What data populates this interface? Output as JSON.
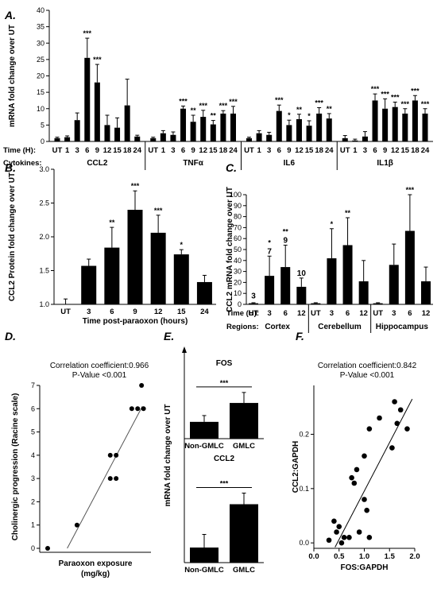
{
  "panels": [
    {
      "id": "A",
      "label": "A."
    },
    {
      "id": "B",
      "label": "B."
    },
    {
      "id": "C",
      "label": "C."
    },
    {
      "id": "D",
      "label": "D."
    },
    {
      "id": "E",
      "label": "E."
    },
    {
      "id": "F",
      "label": "F."
    }
  ],
  "chart_data": [
    {
      "id": "A",
      "type": "bar",
      "ylabel": "mRNA fold change over UT",
      "ylim": [
        0,
        40
      ],
      "yticks": [
        0,
        5,
        10,
        15,
        20,
        25,
        30,
        35,
        40
      ],
      "time_row_label": "Time (H):",
      "group_row_label": "Cytokines:",
      "time_labels": [
        "UT",
        "1",
        "3",
        "6",
        "9",
        "12",
        "15",
        "18",
        "24"
      ],
      "groups": [
        {
          "name": "CCL2",
          "values": [
            1.0,
            1.3,
            6.5,
            25.5,
            18.0,
            5.0,
            4.2,
            11.0,
            1.5
          ],
          "errors": [
            0.3,
            0.4,
            2.2,
            6.0,
            5.5,
            3.0,
            3.0,
            8.0,
            0.4
          ],
          "sig": [
            "",
            "",
            "",
            "***",
            "***",
            "",
            "",
            "",
            ""
          ]
        },
        {
          "name": "TNFα",
          "values": [
            1.0,
            2.5,
            2.0,
            10.0,
            6.0,
            7.5,
            5.2,
            8.5,
            8.5
          ],
          "errors": [
            0.3,
            0.8,
            0.9,
            0.8,
            2.0,
            2.0,
            1.2,
            0.9,
            2.2
          ],
          "sig": [
            "",
            "",
            "",
            "***",
            "**",
            "***",
            "**",
            "***",
            "***"
          ]
        },
        {
          "name": "IL6",
          "values": [
            1.0,
            2.5,
            2.0,
            9.3,
            5.0,
            6.8,
            4.8,
            8.5,
            7.0
          ],
          "errors": [
            0.3,
            0.8,
            0.8,
            1.8,
            1.5,
            1.5,
            1.5,
            1.8,
            1.5
          ],
          "sig": [
            "",
            "",
            "",
            "***",
            "*",
            "**",
            "*",
            "***",
            "**"
          ]
        },
        {
          "name": "IL1β",
          "values": [
            1.0,
            0.3,
            1.5,
            12.5,
            10.0,
            10.5,
            8.5,
            12.5,
            8.5
          ],
          "errors": [
            0.8,
            0.4,
            1.5,
            2.0,
            3.0,
            1.5,
            1.5,
            1.5,
            1.5
          ],
          "sig": [
            "",
            "",
            "",
            "***",
            "***",
            "***",
            "***",
            "***",
            "***"
          ]
        }
      ]
    },
    {
      "id": "B",
      "type": "bar",
      "ylabel": "CCL2 Protein fold change over UT",
      "xlabel": "Time post-paraoxon (hours)",
      "ylim": [
        1.0,
        3.0
      ],
      "yticks": [
        1.0,
        1.5,
        2.0,
        2.5,
        3.0
      ],
      "categories": [
        "UT",
        "3",
        "6",
        "9",
        "12",
        "15",
        "24"
      ],
      "values": [
        1.0,
        1.57,
        1.84,
        2.4,
        2.06,
        1.74,
        1.33
      ],
      "errors": [
        0.08,
        0.1,
        0.3,
        0.28,
        0.26,
        0.07,
        0.1
      ],
      "sig": [
        "",
        "",
        "**",
        "***",
        "***",
        "*",
        ""
      ]
    },
    {
      "id": "C",
      "type": "bar",
      "ylabel": "CCL2 mRNA fold change over UT",
      "ylim": [
        0,
        100
      ],
      "yticks": [
        0,
        10,
        20,
        30,
        40,
        50,
        60,
        70,
        80,
        90,
        100
      ],
      "time_row_label": "Time (H):",
      "group_row_label": "Regions:",
      "time_labels": [
        "UT",
        "3",
        "6",
        "12"
      ],
      "groups": [
        {
          "name": "Cortex",
          "values": [
            1.0,
            26.0,
            34.0,
            16.0
          ],
          "errors": [
            0.5,
            18.0,
            20.0,
            8.0
          ],
          "sig": [
            "",
            "*",
            "**",
            ""
          ],
          "counts": [
            "3",
            "7",
            "9",
            "10"
          ]
        },
        {
          "name": "Cerebellum",
          "values": [
            1.0,
            42.0,
            54.0,
            21.0
          ],
          "errors": [
            0.5,
            27.0,
            25.0,
            19.0
          ],
          "sig": [
            "",
            "*",
            "**",
            ""
          ],
          "counts": [
            "",
            "",
            "",
            ""
          ]
        },
        {
          "name": "Hippocampus",
          "values": [
            1.0,
            36.0,
            67.0,
            21.0
          ],
          "errors": [
            0.5,
            19.0,
            33.0,
            13.0
          ],
          "sig": [
            "",
            "",
            "***",
            ""
          ],
          "counts": [
            "",
            "",
            "",
            ""
          ]
        }
      ]
    },
    {
      "id": "D",
      "type": "scatter",
      "title": "Correlation coefficient:0.966",
      "subtitle": "P-Value <0.001",
      "ylabel": "Cholinergic progression (Racine scale)",
      "xlabel": "Paraoxon exposure",
      "xlabel2": "(mg/kg)",
      "ylim": [
        0,
        7
      ],
      "yticks": [
        0,
        1,
        2,
        3,
        4,
        5,
        6,
        7
      ],
      "xlim": [
        0,
        2.6
      ],
      "points": [
        [
          0,
          0
        ],
        [
          0.75,
          1
        ],
        [
          1.6,
          3
        ],
        [
          1.75,
          3
        ],
        [
          1.6,
          4
        ],
        [
          1.75,
          4
        ],
        [
          2.15,
          6
        ],
        [
          2.3,
          6
        ],
        [
          2.45,
          6
        ],
        [
          2.4,
          7
        ]
      ],
      "fit": [
        [
          0.5,
          0.0
        ],
        [
          2.42,
          6.1
        ]
      ]
    },
    {
      "id": "E",
      "type": "bar",
      "ylabel": "mRNA fold change over UT",
      "subcharts": [
        {
          "title": "FOS",
          "categories": [
            "Non-GMLC",
            "GMLC"
          ],
          "values": [
            0.8,
            1.7
          ],
          "errors": [
            0.3,
            0.5
          ],
          "sig": "***",
          "ylim": [
            0,
            2.8
          ]
        },
        {
          "title": "CCL2",
          "categories": [
            "Non-GMLC",
            "GMLC"
          ],
          "values": [
            3.8,
            14.7
          ],
          "errors": [
            3.3,
            2.8
          ],
          "sig": "***",
          "ylim": [
            0,
            22
          ]
        }
      ]
    },
    {
      "id": "F",
      "type": "scatter",
      "title": "Correlation coefficient:0.842",
      "subtitle": "P-Value <0.001",
      "ylabel": "CCL2:GAPDH",
      "xlabel": "FOS:GAPDH",
      "xlim": [
        0.0,
        2.0
      ],
      "xticks": [
        "0.0",
        "0.5",
        "1.0",
        "1.5",
        "2.0"
      ],
      "ylim": [
        -0.01,
        0.29
      ],
      "yticks": [
        "0.0",
        "0.1",
        "0.2"
      ],
      "points": [
        [
          0.3,
          0.005
        ],
        [
          0.4,
          0.04
        ],
        [
          0.45,
          0.02
        ],
        [
          0.5,
          0.03
        ],
        [
          0.55,
          0.0
        ],
        [
          0.6,
          0.01
        ],
        [
          0.7,
          0.01
        ],
        [
          0.75,
          0.12
        ],
        [
          0.8,
          0.11
        ],
        [
          0.85,
          0.135
        ],
        [
          0.9,
          0.02
        ],
        [
          1.0,
          0.08
        ],
        [
          1.0,
          0.16
        ],
        [
          1.05,
          0.06
        ],
        [
          1.1,
          0.01
        ],
        [
          1.1,
          0.21
        ],
        [
          1.3,
          0.23
        ],
        [
          1.55,
          0.175
        ],
        [
          1.6,
          0.26
        ],
        [
          1.65,
          0.22
        ],
        [
          1.72,
          0.245
        ],
        [
          1.85,
          0.21
        ]
      ],
      "fit": [
        [
          0.42,
          -0.008
        ],
        [
          1.95,
          0.265
        ]
      ]
    }
  ]
}
